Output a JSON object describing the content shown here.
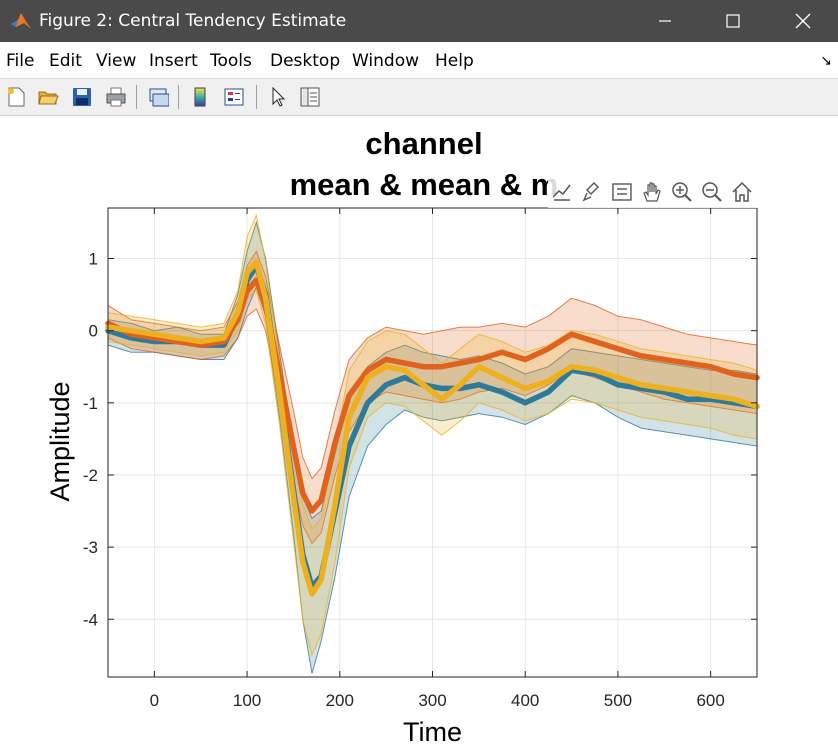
{
  "window": {
    "title": "Figure 2: Central Tendency Estimate",
    "icon": "matlab-logo-icon",
    "controls": [
      "minimize-icon",
      "maximize-icon",
      "close-icon"
    ]
  },
  "menu": {
    "items": [
      "File",
      "Edit",
      "View",
      "Insert",
      "Tools",
      "Desktop",
      "Window",
      "Help"
    ],
    "dock_icon": "dock-arrow-icon"
  },
  "toolbar": {
    "icons": [
      "new-figure-icon",
      "open-file-icon",
      "save-icon",
      "print-icon",
      "link-plot-icon",
      "colorbar-icon",
      "legend-icon",
      "pointer-icon",
      "property-editor-icon"
    ]
  },
  "axes_toolbar": {
    "icons": [
      "data-tips-icon",
      "brush-icon",
      "legend-toggle-icon",
      "pan-icon",
      "zoom-in-icon",
      "zoom-out-icon",
      "home-icon"
    ]
  },
  "chart_data": {
    "type": "line",
    "title": [
      "channel",
      "mean & mean & m"
    ],
    "xlabel": "Time",
    "ylabel": "Amplitude",
    "xlim": [
      -50,
      650
    ],
    "ylim": [
      -4.8,
      1.7
    ],
    "xticks": [
      0,
      100,
      200,
      300,
      400,
      500,
      600
    ],
    "yticks": [
      1,
      0,
      -1,
      -2,
      -3,
      -4
    ],
    "grid": true,
    "legend": "none",
    "x": [
      -50,
      -25,
      0,
      25,
      50,
      75,
      90,
      100,
      110,
      120,
      135,
      150,
      160,
      170,
      180,
      195,
      210,
      230,
      250,
      270,
      290,
      310,
      330,
      350,
      375,
      400,
      425,
      450,
      475,
      500,
      525,
      550,
      575,
      600,
      625,
      650
    ],
    "series": [
      {
        "color": "#2e7a9a",
        "values": [
          0.0,
          -0.1,
          -0.15,
          -0.15,
          -0.2,
          -0.2,
          0.2,
          0.7,
          0.9,
          0.5,
          -0.8,
          -2.2,
          -3.1,
          -3.55,
          -3.4,
          -2.5,
          -1.6,
          -1.0,
          -0.75,
          -0.65,
          -0.75,
          -0.8,
          -0.8,
          -0.75,
          -0.85,
          -1.0,
          -0.85,
          -0.55,
          -0.6,
          -0.75,
          -0.8,
          -0.85,
          -0.95,
          -0.95,
          -1.0,
          -1.05
        ],
        "lower": [
          -0.2,
          -0.3,
          -0.3,
          -0.35,
          -0.4,
          -0.4,
          -0.1,
          0.3,
          0.6,
          0.2,
          -1.2,
          -2.8,
          -4.0,
          -4.75,
          -4.3,
          -3.4,
          -2.3,
          -1.6,
          -1.3,
          -1.1,
          -1.2,
          -1.25,
          -1.2,
          -1.15,
          -1.2,
          -1.3,
          -1.15,
          -0.9,
          -1.0,
          -1.2,
          -1.35,
          -1.4,
          -1.45,
          -1.5,
          -1.55,
          -1.6
        ],
        "upper": [
          0.15,
          0.1,
          0.0,
          0.05,
          -0.05,
          -0.05,
          0.5,
          1.1,
          1.5,
          1.0,
          -0.3,
          -1.6,
          -2.3,
          -2.6,
          -2.5,
          -1.7,
          -0.9,
          -0.5,
          -0.3,
          -0.2,
          -0.3,
          -0.35,
          -0.4,
          -0.35,
          -0.45,
          -0.6,
          -0.5,
          -0.25,
          -0.3,
          -0.35,
          -0.4,
          -0.45,
          -0.5,
          -0.55,
          -0.55,
          -0.6
        ]
      },
      {
        "color": "#e0621d",
        "values": [
          0.1,
          -0.05,
          -0.1,
          -0.15,
          -0.2,
          -0.15,
          0.15,
          0.55,
          0.7,
          0.35,
          -0.6,
          -1.6,
          -2.25,
          -2.5,
          -2.35,
          -1.55,
          -0.9,
          -0.55,
          -0.4,
          -0.45,
          -0.5,
          -0.5,
          -0.45,
          -0.4,
          -0.3,
          -0.4,
          -0.25,
          -0.05,
          -0.15,
          -0.25,
          -0.35,
          -0.4,
          -0.45,
          -0.5,
          -0.6,
          -0.65
        ],
        "lower": [
          -0.1,
          -0.25,
          -0.3,
          -0.35,
          -0.4,
          -0.35,
          -0.1,
          0.2,
          0.3,
          0.0,
          -1.0,
          -2.1,
          -2.7,
          -2.95,
          -2.8,
          -2.0,
          -1.4,
          -1.0,
          -0.85,
          -0.9,
          -0.95,
          -1.0,
          -0.95,
          -0.85,
          -0.8,
          -0.9,
          -0.75,
          -0.55,
          -0.65,
          -0.75,
          -0.85,
          -0.95,
          -1.0,
          -1.05,
          -1.1,
          -1.15
        ],
        "upper": [
          0.35,
          0.15,
          0.1,
          0.05,
          0.0,
          0.05,
          0.4,
          0.9,
          1.1,
          0.75,
          -0.2,
          -1.1,
          -1.75,
          -2.05,
          -1.9,
          -1.1,
          -0.4,
          -0.1,
          0.05,
          0.0,
          -0.05,
          0.0,
          0.05,
          0.05,
          0.1,
          0.05,
          0.2,
          0.45,
          0.35,
          0.2,
          0.15,
          0.05,
          -0.05,
          -0.1,
          -0.15,
          -0.2
        ]
      },
      {
        "color": "#edb120",
        "values": [
          0.05,
          0.0,
          -0.05,
          -0.1,
          -0.15,
          -0.1,
          0.25,
          0.8,
          0.95,
          0.45,
          -0.85,
          -2.3,
          -3.2,
          -3.65,
          -3.45,
          -2.4,
          -1.2,
          -0.65,
          -0.5,
          -0.55,
          -0.75,
          -0.95,
          -0.75,
          -0.5,
          -0.65,
          -0.8,
          -0.7,
          -0.5,
          -0.55,
          -0.65,
          -0.75,
          -0.8,
          -0.85,
          -0.9,
          -0.95,
          -1.05
        ],
        "lower": [
          -0.15,
          -0.2,
          -0.25,
          -0.3,
          -0.35,
          -0.3,
          0.0,
          0.45,
          0.55,
          0.1,
          -1.3,
          -2.9,
          -4.0,
          -4.5,
          -4.2,
          -3.2,
          -1.9,
          -1.2,
          -1.0,
          -1.05,
          -1.25,
          -1.45,
          -1.25,
          -1.0,
          -1.1,
          -1.25,
          -1.15,
          -0.95,
          -1.0,
          -1.1,
          -1.2,
          -1.25,
          -1.3,
          -1.35,
          -1.45,
          -1.5
        ],
        "upper": [
          0.25,
          0.2,
          0.15,
          0.1,
          0.05,
          0.1,
          0.55,
          1.3,
          1.6,
          0.95,
          -0.4,
          -1.7,
          -2.4,
          -2.75,
          -2.6,
          -1.6,
          -0.55,
          -0.15,
          0.0,
          -0.05,
          -0.25,
          -0.45,
          -0.25,
          -0.05,
          -0.15,
          -0.3,
          -0.2,
          0.0,
          -0.05,
          -0.15,
          -0.25,
          -0.3,
          -0.35,
          -0.4,
          -0.45,
          -0.55
        ]
      }
    ]
  }
}
